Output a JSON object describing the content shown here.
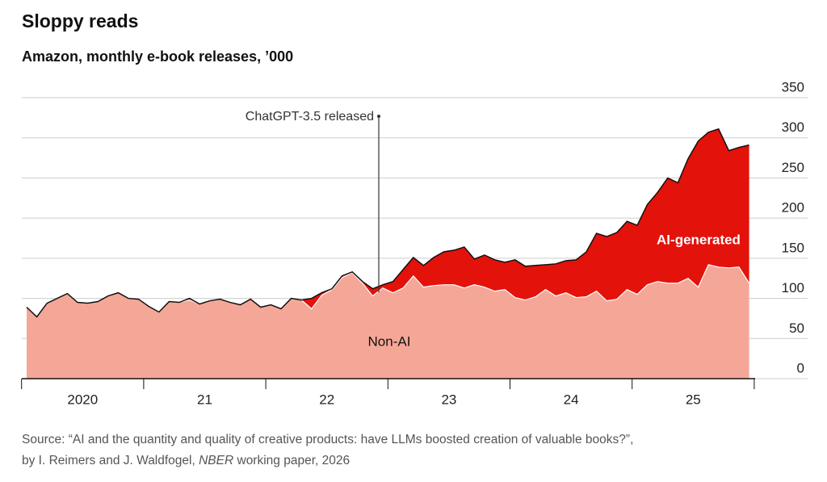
{
  "chart_data": {
    "type": "area",
    "stacked": true,
    "title": "Sloppy reads",
    "subtitle": "Amazon, monthly e-book releases, ’000",
    "categories": [
      "2020",
      null,
      null,
      null,
      null,
      null,
      null,
      null,
      null,
      null,
      null,
      null,
      "21",
      null,
      null,
      null,
      null,
      null,
      null,
      null,
      null,
      null,
      null,
      null,
      "22",
      null,
      null,
      null,
      null,
      null,
      null,
      null,
      null,
      null,
      null,
      null,
      "23",
      null,
      null,
      null,
      null,
      null,
      null,
      null,
      null,
      null,
      null,
      null,
      "24",
      null,
      null,
      null,
      null,
      null,
      null,
      null,
      null,
      null,
      null,
      null,
      "25",
      null,
      null,
      null,
      null,
      null,
      null,
      null,
      null,
      null,
      null,
      null
    ],
    "series": [
      {
        "name": "Non-AI",
        "color": "#f5a797",
        "values": [
          89,
          77,
          94,
          100,
          106,
          95,
          94,
          96,
          103,
          107,
          100,
          99,
          90,
          83,
          96,
          95,
          98,
          93,
          97,
          99,
          95,
          92,
          99,
          89,
          92,
          87,
          100,
          98,
          87,
          104,
          111,
          126,
          132,
          119,
          103,
          113,
          107,
          113,
          128,
          114,
          116,
          117,
          117,
          113,
          117,
          114,
          109,
          111,
          101,
          98,
          102,
          111,
          103,
          107,
          101,
          102,
          109,
          97,
          99,
          111,
          105,
          117,
          121,
          119,
          119,
          125,
          114,
          142,
          139,
          138,
          139,
          119
        ]
      },
      {
        "name": "AI-generated",
        "color": "#e3120b",
        "values": [
          0,
          0,
          0,
          0,
          0,
          0,
          0,
          0,
          0,
          0,
          0,
          0,
          0,
          0,
          0,
          0,
          2,
          0,
          0,
          0,
          0,
          0,
          0,
          0,
          0,
          0,
          0,
          0,
          13,
          3,
          1,
          2,
          1,
          2,
          9,
          4,
          14,
          23,
          23,
          27,
          35,
          41,
          43,
          51,
          32,
          40,
          39,
          34,
          47,
          42,
          39,
          31,
          40,
          40,
          47,
          56,
          72,
          80,
          83,
          85,
          86,
          100,
          111,
          131,
          125,
          149,
          182,
          165,
          172,
          146,
          149,
          172
        ]
      }
    ],
    "ylim": [
      0,
      350
    ],
    "yticks": [
      0,
      50,
      100,
      150,
      200,
      250,
      300,
      350
    ],
    "grid": true,
    "annotation": "ChatGPT-3.5 released",
    "source": [
      [
        "Source: “AI and the quantity and quality of creative products: have LLMs boosted creation of valuable books?”,"
      ],
      [
        "by I. Reimers and J. Waldfogel, ",
        "NBER",
        " working paper, 2026"
      ]
    ]
  }
}
